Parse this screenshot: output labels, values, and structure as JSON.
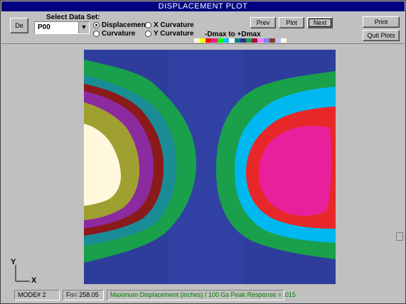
{
  "window": {
    "title": "DISPLACEMENT PLOT"
  },
  "toolbar": {
    "de_button": "De",
    "dataset_label": "Select Data Set:",
    "dataset_value": "P00",
    "radios": {
      "displacement": {
        "label": "Displacement",
        "checked": true
      },
      "x_curvature": {
        "label": "X Curvature",
        "checked": false
      },
      "curvature": {
        "label": "Curvature",
        "checked": false
      },
      "y_curvature": {
        "label": "Y Curvature",
        "checked": false
      }
    },
    "scale_label": "-Dmax to +Dmax",
    "scale_colors": [
      "#ffffe0",
      "#ffff00",
      "#ff0000",
      "#e91e8c",
      "#00ff00",
      "#00c0ff",
      "#ffffff",
      "#008080",
      "#303090",
      "#20a050",
      "#a01040",
      "#ff80ff",
      "#8080ff",
      "#804020",
      "#c0c0ff",
      "#ffffe0"
    ],
    "prev": "Prev",
    "plot": "Plot",
    "next": "Next",
    "print": "Print",
    "quit": "Quit Plots"
  },
  "axes": {
    "y": "Y",
    "x": "X"
  },
  "contour_colors": {
    "base": "#2e3d9c",
    "green": "#1aa04a",
    "teal": "#1a8c96",
    "maroon": "#8b1a1a",
    "purple": "#8c2aa0",
    "olive": "#a0a030",
    "cream": "#fff8dc",
    "cyan": "#00b8f0",
    "red": "#e82828",
    "magenta": "#e8209c"
  },
  "status": {
    "mode": "MODE# 2",
    "fn": "Fn=   258.05",
    "message": "Maximum Displacement (inches) / 100 Gs Peak Response = .015",
    "message_color": "#008000"
  }
}
